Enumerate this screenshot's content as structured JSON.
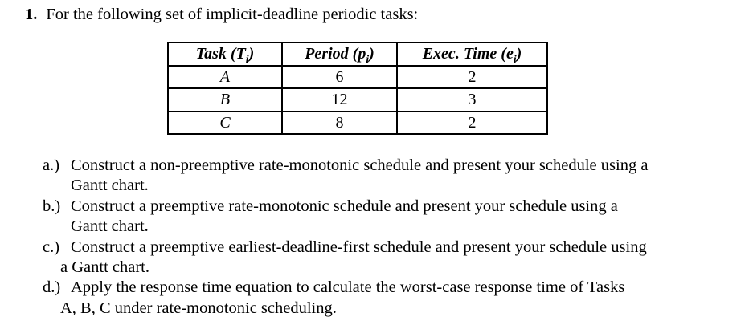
{
  "problem": {
    "number": "1.",
    "prompt": "For the following set of implicit-deadline periodic tasks:"
  },
  "task_table": {
    "headers": [
      {
        "pre": "Task (T",
        "sub": "i",
        "post": ")"
      },
      {
        "pre": "Period (p",
        "sub": "i",
        "post": ")"
      },
      {
        "pre": "Exec. Time (e",
        "sub": "i",
        "post": ")"
      }
    ],
    "rows": [
      {
        "task": "A",
        "period": "6",
        "exec_time": "2"
      },
      {
        "task": "B",
        "period": "12",
        "exec_time": "3"
      },
      {
        "task": "C",
        "period": "8",
        "exec_time": "2"
      }
    ]
  },
  "questions": [
    {
      "label": "a.)",
      "line1": "Construct a non-preemptive rate-monotonic schedule and present your schedule using a",
      "line2": "Gantt chart."
    },
    {
      "label": "b.)",
      "line1": "Construct a preemptive rate-monotonic schedule and present your schedule using a",
      "line2": "Gantt chart."
    },
    {
      "label": "c.)",
      "line1": "Construct a preemptive earliest-deadline-first schedule and present your schedule using",
      "line2": "a Gantt chart."
    },
    {
      "label": "d.)",
      "line1": "Apply the response time equation to calculate the worst-case response time of Tasks",
      "line2": "A, B, C under rate-monotonic scheduling."
    }
  ],
  "colors": {
    "background": "#ffffff",
    "text": "#000000",
    "table_border": "#000000"
  }
}
